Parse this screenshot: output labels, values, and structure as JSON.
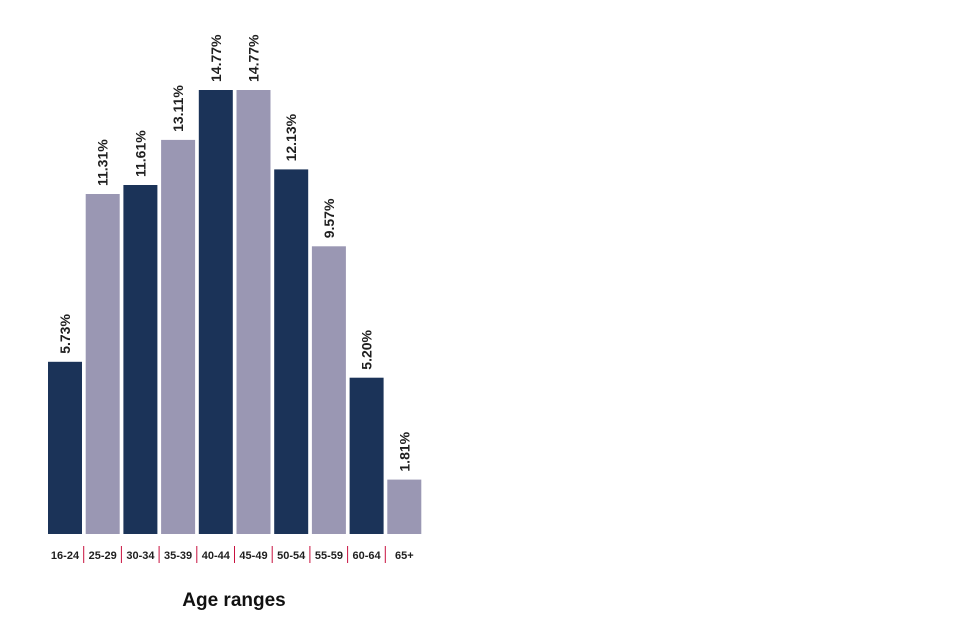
{
  "chart_data": {
    "type": "bar",
    "title": "",
    "xlabel": "Age ranges",
    "ylabel": "",
    "categories": [
      "16-24",
      "25-29",
      "30-34",
      "35-39",
      "40-44",
      "45-49",
      "50-54",
      "55-59",
      "60-64",
      "65+"
    ],
    "values": [
      5.73,
      11.31,
      11.61,
      13.11,
      14.77,
      14.77,
      12.13,
      9.57,
      5.2,
      1.81
    ],
    "value_labels": [
      "5.73%",
      "11.31%",
      "11.61%",
      "13.11%",
      "14.77%",
      "14.77%",
      "12.13%",
      "9.57%",
      "5.20%",
      "1.81%"
    ],
    "ylim": [
      0,
      14.77
    ],
    "grid": false,
    "legend": "none",
    "colors": {
      "bar_dark": "#1b3358",
      "bar_light": "#9a97b3",
      "divider": "#c8103e",
      "text": "#1f1f1f"
    }
  }
}
